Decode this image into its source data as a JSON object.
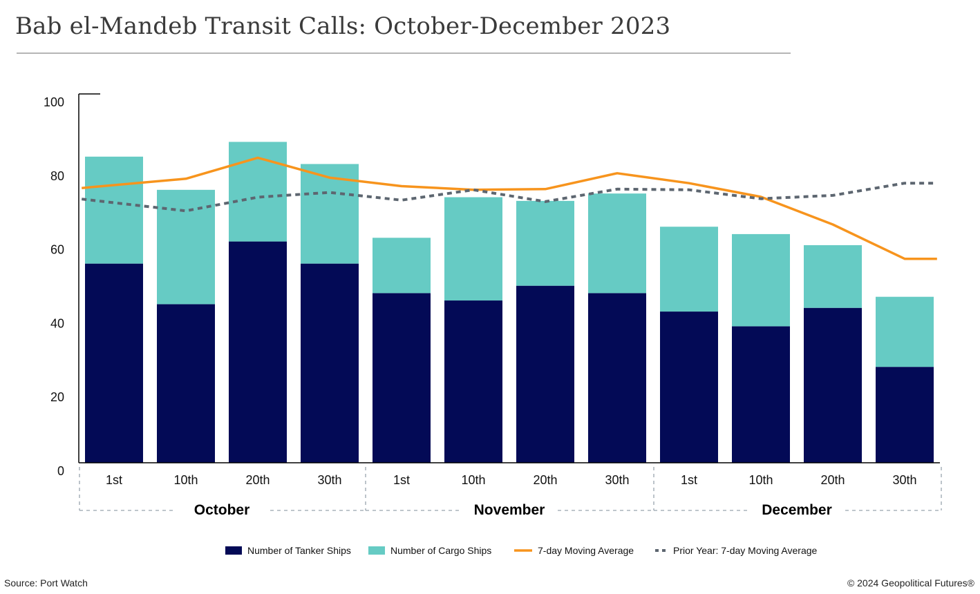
{
  "chart_data": {
    "type": "bar",
    "title": "Bab el-Mandeb Transit Calls: October-December 2023",
    "categories": [
      "1st",
      "10th",
      "20th",
      "30th",
      "1st",
      "10th",
      "20th",
      "30th",
      "1st",
      "10th",
      "20th",
      "30th"
    ],
    "groups": [
      {
        "label": "October",
        "start": 0,
        "end": 3
      },
      {
        "label": "November",
        "start": 4,
        "end": 7
      },
      {
        "label": "December",
        "start": 8,
        "end": 11
      }
    ],
    "ylim": [
      0,
      100
    ],
    "yticks": [
      0,
      20,
      40,
      60,
      80,
      100
    ],
    "stacked": true,
    "series": [
      {
        "name": "Number of Tanker Ships",
        "kind": "bar",
        "color": "#030a56",
        "values": [
          54,
          43,
          60,
          54,
          46,
          44,
          48,
          46,
          41,
          37,
          42,
          26
        ]
      },
      {
        "name": "Number of Cargo Ships",
        "kind": "bar",
        "color": "#66cbc4",
        "values": [
          29,
          31,
          27,
          27,
          15,
          28,
          23,
          27,
          23,
          25,
          17,
          19
        ]
      },
      {
        "name": "7-day Moving Average",
        "kind": "line",
        "color": "#f7941d",
        "x": [
          -0.45,
          1,
          2,
          3,
          4,
          5,
          6,
          7,
          8,
          9,
          10,
          11,
          11.45
        ],
        "values": [
          74.5,
          77,
          82.7,
          77.3,
          75,
          74,
          74.2,
          78.5,
          75.8,
          72.1,
          64.6,
          55.3,
          55.3
        ]
      },
      {
        "name": "Prior Year: 7-day Moving Average",
        "kind": "line",
        "color": "#5d6670",
        "dashed": true,
        "x": [
          -0.45,
          1,
          2,
          3,
          4,
          5,
          6,
          7,
          8,
          9,
          10,
          11,
          11.45
        ],
        "values": [
          71.5,
          68.3,
          72,
          73.3,
          71.2,
          74,
          70.8,
          74.2,
          74,
          71.6,
          72.5,
          75.8,
          75.8
        ]
      }
    ],
    "legend_position": "bottom",
    "grid": false
  },
  "footer": {
    "source": "Source: Port Watch",
    "credit": "© 2024 Geopolitical Futures®"
  }
}
